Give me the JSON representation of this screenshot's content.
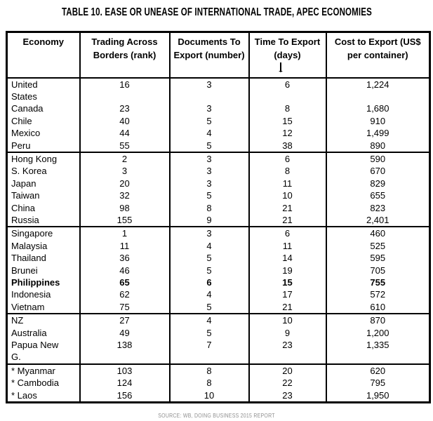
{
  "title": "TABLE 10. EASE OR UNEASE OF INTERNATIONAL TRADE, APEC ECONOMIES",
  "source": "SOURCE: WB, DOING BUSINESS 2015 REPORT",
  "table": {
    "headers": [
      "Economy",
      "Trading Across Borders (rank)",
      "Documents To Export (number)",
      "Time To Export (days)",
      "Cost to Export (US$ per container)"
    ],
    "groups": [
      {
        "rows": [
          {
            "economy": "United\nStates",
            "rank": "16",
            "documents": "3",
            "time": "6",
            "cost": "1,224"
          },
          {
            "economy": "Canada",
            "rank": "23",
            "documents": "3",
            "time": "8",
            "cost": "1,680"
          },
          {
            "economy": "Chile",
            "rank": "40",
            "documents": "5",
            "time": "15",
            "cost": "910"
          },
          {
            "economy": "Mexico",
            "rank": "44",
            "documents": "4",
            "time": "12",
            "cost": "1,499"
          },
          {
            "economy": "Peru",
            "rank": "55",
            "documents": "5",
            "time": "38",
            "cost": "890"
          }
        ]
      },
      {
        "rows": [
          {
            "economy": "Hong Kong",
            "rank": "2",
            "documents": "3",
            "time": "6",
            "cost": "590"
          },
          {
            "economy": "S. Korea",
            "rank": "3",
            "documents": "3",
            "time": "8",
            "cost": "670"
          },
          {
            "economy": "Japan",
            "rank": "20",
            "documents": "3",
            "time": "11",
            "cost": "829"
          },
          {
            "economy": "Taiwan",
            "rank": "32",
            "documents": "5",
            "time": "10",
            "cost": "655"
          },
          {
            "economy": "China",
            "rank": "98",
            "documents": "8",
            "time": "21",
            "cost": "823"
          },
          {
            "economy": "Russia",
            "rank": "155",
            "documents": "9",
            "time": "21",
            "cost": "2,401"
          }
        ]
      },
      {
        "rows": [
          {
            "economy": "Singapore",
            "rank": "1",
            "documents": "3",
            "time": "6",
            "cost": "460"
          },
          {
            "economy": "Malaysia",
            "rank": "11",
            "documents": "4",
            "time": "11",
            "cost": "525"
          },
          {
            "economy": "Thailand",
            "rank": "36",
            "documents": "5",
            "time": "14",
            "cost": "595"
          },
          {
            "economy": "Brunei",
            "rank": "46",
            "documents": "5",
            "time": "19",
            "cost": "705"
          },
          {
            "economy": "Philippines",
            "rank": "65",
            "documents": "6",
            "time": "15",
            "cost": "755",
            "bold": true
          },
          {
            "economy": "Indonesia",
            "rank": "62",
            "documents": "4",
            "time": "17",
            "cost": "572"
          },
          {
            "economy": "Vietnam",
            "rank": "75",
            "documents": "5",
            "time": "21",
            "cost": "610"
          }
        ]
      },
      {
        "rows": [
          {
            "economy": "NZ",
            "rank": "27",
            "documents": "4",
            "time": "10",
            "cost": "870"
          },
          {
            "economy": "Australia",
            "rank": "49",
            "documents": "5",
            "time": "9",
            "cost": "1,200"
          },
          {
            "economy": "Papua New\nG.",
            "rank": "138",
            "documents": "7",
            "time": "23",
            "cost": "1,335"
          }
        ]
      },
      {
        "rows": [
          {
            "economy": "* Myanmar",
            "rank": "103",
            "documents": "8",
            "time": "20",
            "cost": "620"
          },
          {
            "economy": "* Cambodia",
            "rank": "124",
            "documents": "8",
            "time": "22",
            "cost": "795"
          },
          {
            "economy": "* Laos",
            "rank": "156",
            "documents": "10",
            "time": "23",
            "cost": "1,950"
          }
        ]
      }
    ]
  },
  "colors": {
    "text": "#000000",
    "border": "#000000",
    "source_text": "#8f8f8f",
    "background": "#ffffff"
  }
}
